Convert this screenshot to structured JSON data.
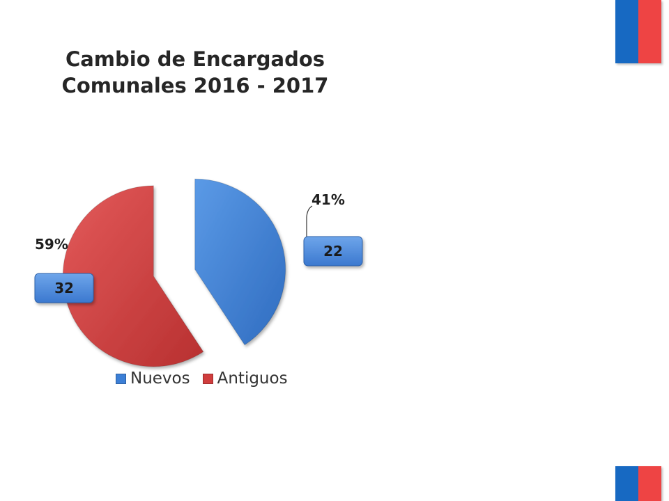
{
  "chart_data": {
    "type": "pie",
    "title_lines": [
      "Cambio de Encargados",
      "Comunales 2016 - 2017"
    ],
    "slices": [
      {
        "name": "Nuevos",
        "value": 22,
        "percent_label": "41%",
        "color": "#3c7fd6"
      },
      {
        "name": "Antiguos",
        "value": 32,
        "percent_label": "59%",
        "color": "#d03d3d"
      }
    ],
    "legend_position": "bottom",
    "exploded": true
  },
  "flag_colors": {
    "blue": "#1769c2",
    "red": "#ee4444"
  }
}
